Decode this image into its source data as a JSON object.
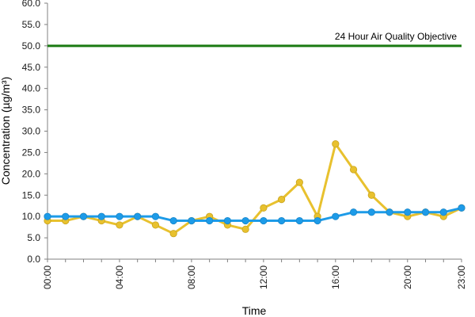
{
  "chart_data": {
    "type": "line",
    "xlabel": "Time",
    "ylabel": "Concentration (µg/m³)",
    "x": [
      "00:00",
      "01:00",
      "02:00",
      "03:00",
      "04:00",
      "05:00",
      "06:00",
      "07:00",
      "08:00",
      "09:00",
      "10:00",
      "11:00",
      "12:00",
      "13:00",
      "14:00",
      "15:00",
      "16:00",
      "17:00",
      "18:00",
      "19:00",
      "20:00",
      "21:00",
      "22:00",
      "23:00"
    ],
    "x_tick_labels": [
      "00:00",
      "04:00",
      "08:00",
      "12:00",
      "16:00",
      "20:00",
      "23:00"
    ],
    "ylim": [
      0,
      60
    ],
    "y_tick_labels": [
      "0.0",
      "5.0",
      "10.0",
      "15.0",
      "20.0",
      "25.0",
      "30.0",
      "35.0",
      "40.0",
      "45.0",
      "50.0",
      "55.0",
      "60.0"
    ],
    "grid": false,
    "series": [
      {
        "color": "#e8c12e",
        "values": [
          9,
          9,
          10,
          9,
          8,
          10,
          8,
          6,
          9,
          10,
          8,
          7,
          12,
          14,
          18,
          10,
          27,
          21,
          15,
          11,
          10,
          11,
          10,
          12
        ]
      },
      {
        "color": "#1d9be8",
        "values": [
          10,
          10,
          10,
          10,
          10,
          10,
          10,
          9,
          9,
          9,
          9,
          9,
          9,
          9,
          9,
          9,
          10,
          11,
          11,
          11,
          11,
          11,
          11,
          12
        ]
      }
    ],
    "reference_line": {
      "label": "24 Hour Air Quality Objective",
      "value": 50,
      "color": "#1a7a12"
    }
  }
}
